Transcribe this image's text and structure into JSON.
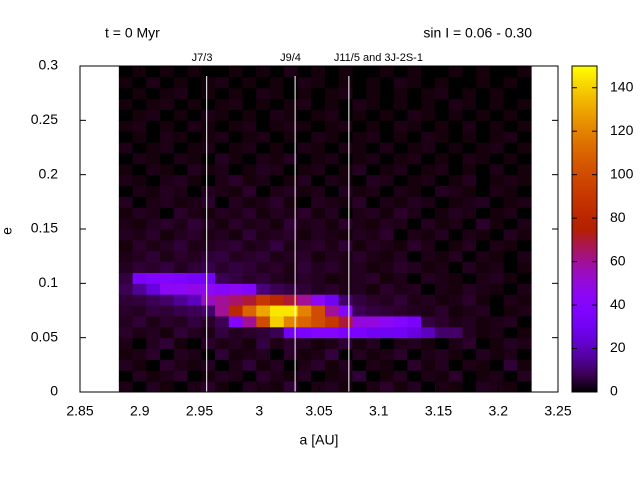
{
  "chart_data": {
    "type": "heatmap",
    "title_left": "t = 0 Myr",
    "title_right": "sin I = 0.06 - 0.30",
    "xlabel": "a [AU]",
    "ylabel": "e",
    "xlim": [
      2.85,
      3.25
    ],
    "ylim": [
      0,
      0.3
    ],
    "xticks": [
      2.85,
      2.9,
      2.95,
      3,
      3.05,
      3.1,
      3.15,
      3.2,
      3.25
    ],
    "yticks": [
      0,
      0.05,
      0.1,
      0.15,
      0.2,
      0.25,
      0.3
    ],
    "cblim": [
      0,
      150
    ],
    "cbticks": [
      0,
      20,
      40,
      60,
      80,
      100,
      120,
      140
    ],
    "annotations": [
      {
        "text": "J7/3",
        "x": 2.956
      },
      {
        "text": "J9/4",
        "x": 3.03
      },
      {
        "text": "J11/5 and 3J-2S-1",
        "x": 3.075
      }
    ],
    "x_edges": [
      2.8825,
      2.894,
      2.9055,
      2.917,
      2.9285,
      2.94,
      2.9515,
      2.963,
      2.9745,
      2.986,
      2.9975,
      3.009,
      3.0205,
      3.032,
      3.0435,
      3.055,
      3.0665,
      3.078,
      3.0895,
      3.101,
      3.1125,
      3.124,
      3.1355,
      3.147,
      3.1585,
      3.17,
      3.1815,
      3.193,
      3.2045,
      3.216,
      3.2275
    ],
    "y_edges": [
      0,
      0.01,
      0.02,
      0.03,
      0.04,
      0.05,
      0.06,
      0.07,
      0.08,
      0.09,
      0.1,
      0.11,
      0.12,
      0.13,
      0.14,
      0.15,
      0.16,
      0.17,
      0.18,
      0.19,
      0.2,
      0.21,
      0.22,
      0.23,
      0.24,
      0.25,
      0.26,
      0.27,
      0.28,
      0.29,
      0.3
    ],
    "z": [
      [
        2,
        0,
        3,
        1,
        0,
        2,
        4,
        1,
        0,
        3,
        2,
        1,
        5,
        0,
        2,
        3,
        1,
        0,
        2,
        4,
        1,
        3,
        0,
        2,
        1,
        0,
        3,
        2,
        1,
        0
      ],
      [
        0,
        3,
        1,
        2,
        4,
        0,
        1,
        3,
        2,
        0,
        4,
        2,
        1,
        3,
        0,
        1,
        2,
        5,
        0,
        1,
        3,
        0,
        2,
        1,
        4,
        0,
        1,
        2,
        0,
        3
      ],
      [
        3,
        1,
        0,
        4,
        2,
        1,
        3,
        0,
        2,
        5,
        1,
        3,
        0,
        2,
        4,
        1,
        3,
        0,
        2,
        1,
        0,
        4,
        1,
        3,
        0,
        2,
        1,
        0,
        5,
        1
      ],
      [
        1,
        2,
        4,
        0,
        3,
        2,
        0,
        5,
        1,
        2,
        3,
        0,
        4,
        1,
        2,
        6,
        0,
        3,
        1,
        2,
        4,
        0,
        2,
        3,
        1,
        0,
        3,
        1,
        2,
        0
      ],
      [
        2,
        0,
        3,
        5,
        1,
        0,
        4,
        2,
        3,
        1,
        6,
        2,
        4,
        3,
        1,
        2,
        5,
        1,
        3,
        0,
        2,
        3,
        1,
        0,
        2,
        4,
        0,
        1,
        3,
        2
      ],
      [
        4,
        2,
        3,
        1,
        5,
        3,
        2,
        6,
        3,
        4,
        5,
        8,
        30,
        35,
        40,
        40,
        35,
        35,
        30,
        30,
        30,
        25,
        20,
        10,
        10,
        3,
        1,
        2,
        0,
        1
      ],
      [
        3,
        5,
        2,
        4,
        3,
        6,
        4,
        8,
        40,
        60,
        100,
        140,
        120,
        110,
        100,
        90,
        70,
        50,
        50,
        45,
        40,
        35,
        6,
        4,
        2,
        3,
        1,
        2,
        3,
        0
      ],
      [
        4,
        3,
        6,
        5,
        7,
        8,
        10,
        60,
        80,
        110,
        130,
        145,
        145,
        120,
        100,
        60,
        40,
        8,
        6,
        5,
        4,
        3,
        2,
        4,
        1,
        2,
        3,
        0,
        1,
        2
      ],
      [
        5,
        6,
        8,
        10,
        15,
        20,
        55,
        60,
        65,
        70,
        90,
        80,
        70,
        60,
        45,
        30,
        10,
        6,
        4,
        3,
        5,
        2,
        3,
        1,
        2,
        4,
        1,
        0,
        2,
        1
      ],
      [
        8,
        15,
        25,
        45,
        45,
        48,
        45,
        42,
        45,
        40,
        12,
        8,
        6,
        5,
        3,
        4,
        2,
        3,
        1,
        4,
        2,
        3,
        0,
        2,
        1,
        3,
        2,
        1,
        0,
        2
      ],
      [
        6,
        35,
        38,
        40,
        36,
        32,
        30,
        8,
        6,
        4,
        5,
        3,
        2,
        4,
        3,
        1,
        2,
        3,
        4,
        1,
        2,
        0,
        3,
        2,
        1,
        0,
        2,
        3,
        1,
        0
      ],
      [
        3,
        5,
        4,
        6,
        3,
        5,
        7,
        4,
        6,
        5,
        3,
        4,
        2,
        5,
        3,
        4,
        2,
        3,
        1,
        2,
        4,
        3,
        1,
        2,
        0,
        3,
        1,
        2,
        0,
        1
      ],
      [
        2,
        3,
        5,
        2,
        4,
        3,
        5,
        6,
        3,
        4,
        5,
        2,
        3,
        4,
        1,
        3,
        2,
        4,
        2,
        1,
        3,
        0,
        2,
        1,
        3,
        0,
        2,
        1,
        0,
        2
      ],
      [
        1,
        4,
        2,
        3,
        5,
        2,
        3,
        4,
        5,
        2,
        3,
        6,
        2,
        3,
        4,
        2,
        5,
        1,
        3,
        2,
        1,
        4,
        2,
        0,
        1,
        3,
        0,
        2,
        1,
        0
      ],
      [
        3,
        2,
        4,
        1,
        3,
        4,
        2,
        3,
        1,
        5,
        2,
        3,
        4,
        1,
        3,
        2,
        1,
        3,
        2,
        4,
        0,
        2,
        1,
        3,
        0,
        2,
        1,
        0,
        3,
        1
      ],
      [
        2,
        1,
        3,
        4,
        2,
        5,
        3,
        1,
        4,
        2,
        3,
        1,
        5,
        2,
        3,
        1,
        4,
        2,
        1,
        3,
        2,
        0,
        3,
        1,
        2,
        0,
        4,
        1,
        0,
        2
      ],
      [
        1,
        3,
        2,
        0,
        4,
        2,
        1,
        3,
        2,
        4,
        1,
        3,
        2,
        4,
        1,
        3,
        0,
        2,
        3,
        1,
        4,
        2,
        0,
        1,
        3,
        2,
        0,
        1,
        2,
        0
      ],
      [
        3,
        0,
        2,
        3,
        1,
        2,
        4,
        0,
        3,
        1,
        2,
        4,
        1,
        0,
        3,
        2,
        1,
        4,
        0,
        2,
        1,
        3,
        2,
        0,
        1,
        2,
        3,
        0,
        1,
        2
      ],
      [
        0,
        2,
        1,
        3,
        2,
        0,
        3,
        2,
        1,
        4,
        0,
        2,
        3,
        1,
        2,
        0,
        3,
        1,
        2,
        0,
        2,
        1,
        0,
        3,
        2,
        1,
        0,
        2,
        1,
        0
      ],
      [
        2,
        1,
        0,
        2,
        3,
        1,
        0,
        2,
        4,
        1,
        2,
        0,
        1,
        3,
        0,
        2,
        1,
        0,
        3,
        2,
        0,
        1,
        2,
        0,
        1,
        3,
        0,
        1,
        2,
        1
      ],
      [
        1,
        0,
        2,
        1,
        0,
        3,
        1,
        2,
        0,
        1,
        3,
        2,
        0,
        1,
        2,
        0,
        1,
        3,
        0,
        1,
        2,
        0,
        1,
        2,
        0,
        1,
        0,
        2,
        0,
        1
      ],
      [
        0,
        2,
        1,
        0,
        2,
        1,
        0,
        3,
        1,
        0,
        2,
        1,
        3,
        0,
        1,
        2,
        0,
        1,
        2,
        0,
        1,
        2,
        0,
        1,
        0,
        2,
        1,
        0,
        1,
        0
      ],
      [
        2,
        0,
        1,
        2,
        0,
        1,
        2,
        0,
        1,
        2,
        0,
        1,
        0,
        2,
        1,
        0,
        2,
        1,
        0,
        2,
        0,
        1,
        2,
        0,
        1,
        0,
        1,
        2,
        0,
        1
      ],
      [
        0,
        1,
        0,
        2,
        1,
        0,
        1,
        2,
        0,
        1,
        2,
        0,
        1,
        0,
        2,
        1,
        0,
        1,
        2,
        0,
        1,
        0,
        2,
        1,
        0,
        1,
        0,
        1,
        2,
        0
      ],
      [
        1,
        2,
        0,
        1,
        0,
        2,
        1,
        0,
        1,
        2,
        0,
        1,
        2,
        1,
        0,
        1,
        2,
        0,
        1,
        0,
        2,
        1,
        0,
        1,
        0,
        2,
        0,
        1,
        0,
        1
      ],
      [
        0,
        1,
        2,
        0,
        1,
        0,
        2,
        1,
        0,
        1,
        0,
        2,
        1,
        0,
        1,
        2,
        0,
        1,
        0,
        1,
        0,
        2,
        1,
        0,
        1,
        0,
        1,
        0,
        1,
        0
      ],
      [
        1,
        0,
        1,
        2,
        0,
        1,
        0,
        1,
        2,
        0,
        1,
        0,
        1,
        2,
        0,
        1,
        0,
        2,
        1,
        0,
        1,
        0,
        1,
        0,
        2,
        1,
        0,
        1,
        0,
        1
      ],
      [
        0,
        1,
        0,
        1,
        2,
        0,
        1,
        0,
        1,
        0,
        2,
        1,
        0,
        1,
        0,
        1,
        2,
        0,
        1,
        0,
        1,
        0,
        1,
        2,
        0,
        1,
        0,
        1,
        0,
        0
      ],
      [
        1,
        0,
        2,
        0,
        1,
        0,
        1,
        2,
        0,
        1,
        0,
        1,
        0,
        2,
        1,
        0,
        1,
        0,
        1,
        0,
        2,
        1,
        0,
        1,
        0,
        0,
        1,
        0,
        1,
        0
      ],
      [
        0,
        1,
        0,
        1,
        0,
        1,
        0,
        0,
        1,
        0,
        1,
        0,
        2,
        0,
        1,
        0,
        1,
        0,
        0,
        1,
        0,
        1,
        0,
        0,
        1,
        0,
        1,
        0,
        0,
        1
      ]
    ]
  }
}
